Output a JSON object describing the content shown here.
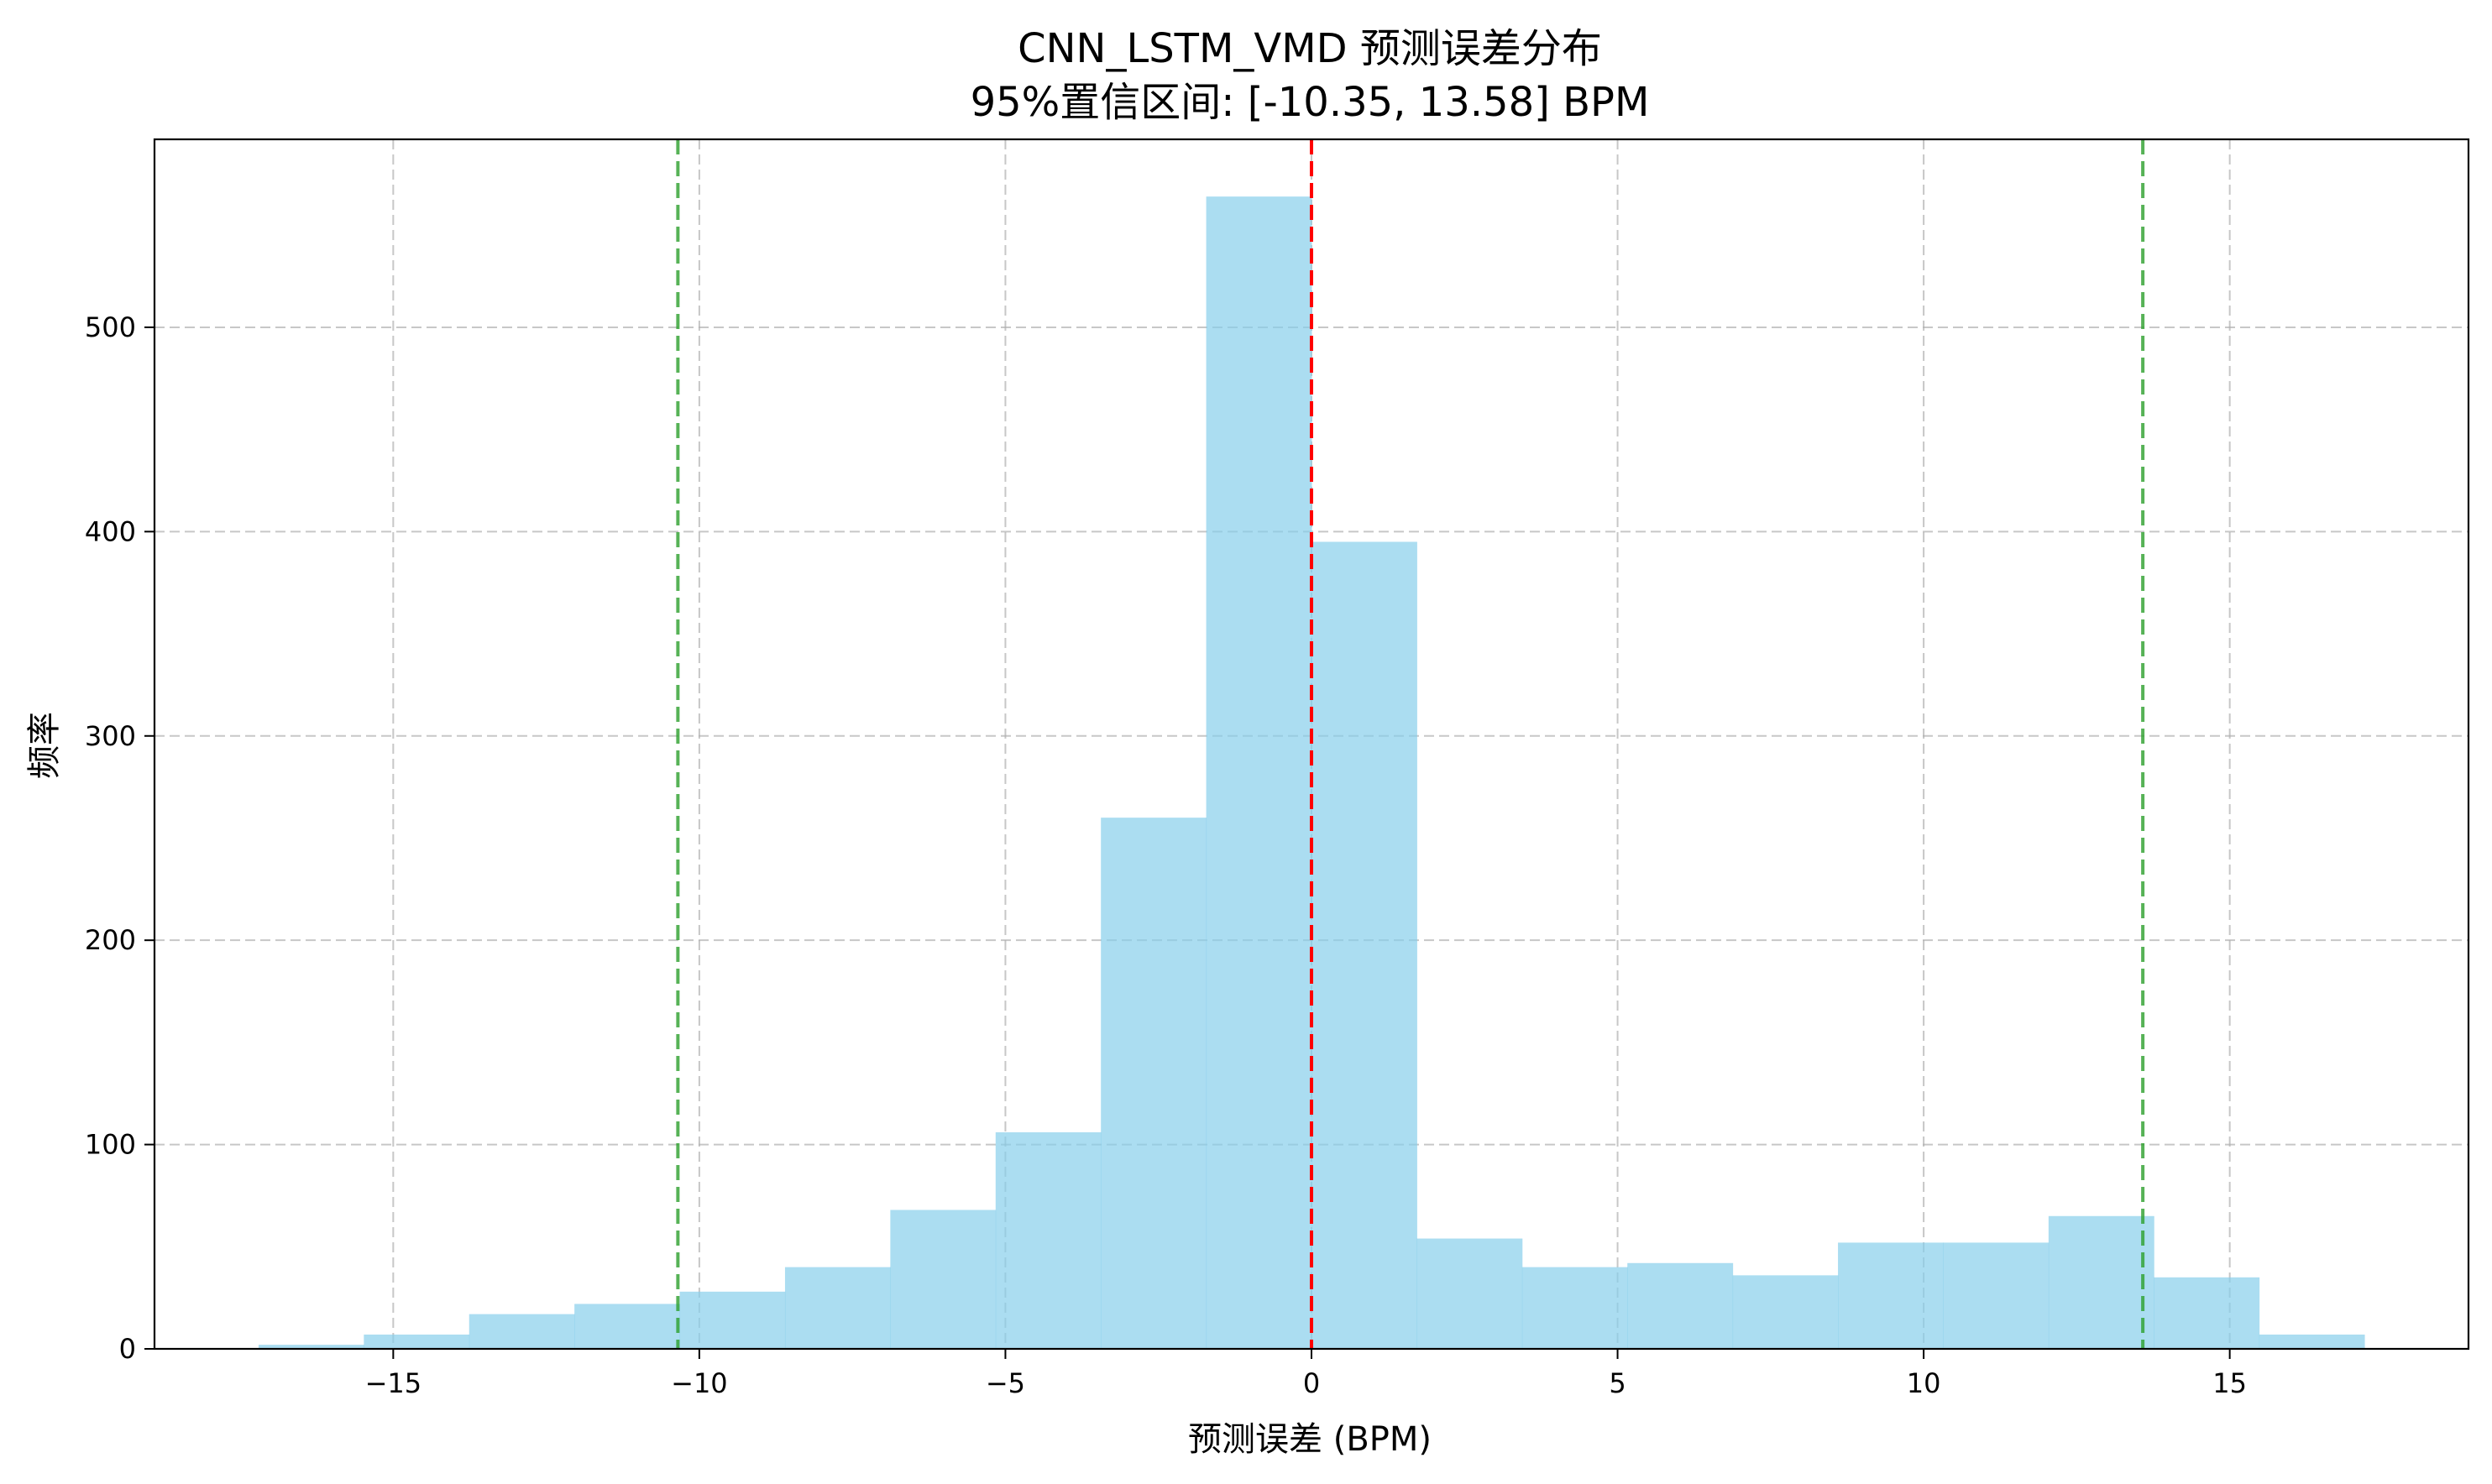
{
  "chart_data": {
    "type": "bar",
    "title": "CNN_LSTM_VMD 预测误差分布",
    "subtitle": "95%置信区间: [-10.35, 13.58] BPM",
    "xlabel": "预测误差 (BPM)",
    "ylabel": "频率",
    "xlim": [
      -18.9,
      18.9
    ],
    "ylim": [
      0,
      592
    ],
    "xticks": [
      -15,
      -10,
      -5,
      0,
      5,
      10,
      15
    ],
    "xtick_labels": [
      "−15",
      "−10",
      "−5",
      "0",
      "5",
      "10",
      "15"
    ],
    "yticks": [
      0,
      100,
      200,
      300,
      400,
      500
    ],
    "ytick_labels": [
      "0",
      "100",
      "200",
      "300",
      "400",
      "500"
    ],
    "grid": true,
    "legend": "none",
    "bins": {
      "start": -17.2,
      "width": 1.72,
      "counts": [
        2,
        7,
        17,
        22,
        28,
        40,
        68,
        106,
        260,
        564,
        395,
        54,
        40,
        42,
        36,
        52,
        52,
        65,
        35,
        7
      ]
    },
    "reference_lines": [
      {
        "x": 0,
        "kind": "mean",
        "color": "#ff0000"
      },
      {
        "x": -10.35,
        "kind": "ci-lower",
        "color": "#2ca02c"
      },
      {
        "x": 13.58,
        "kind": "ci-upper",
        "color": "#2ca02c"
      }
    ],
    "bar_color": "#87ceeb"
  }
}
